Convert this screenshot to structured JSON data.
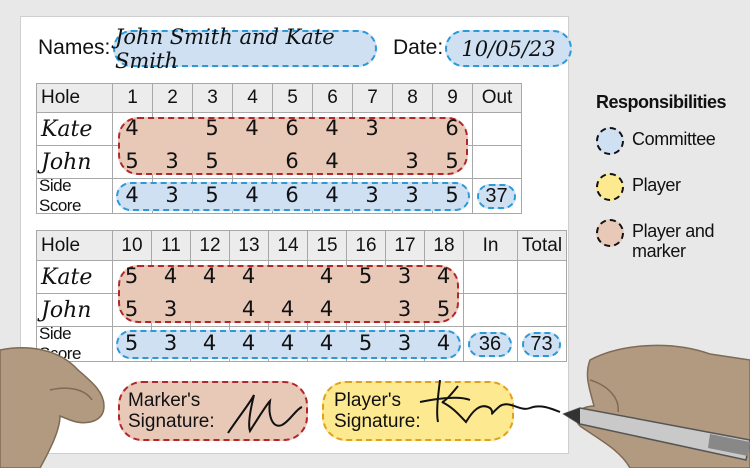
{
  "header": {
    "names_label": "Names:",
    "names_value": "John Smith and Kate Smith",
    "date_label": "Date:",
    "date_value": "10/05/23"
  },
  "front_nine": {
    "hole_label": "Hole",
    "holes": [
      "1",
      "2",
      "3",
      "4",
      "5",
      "6",
      "7",
      "8",
      "9"
    ],
    "total_label": "Out",
    "rows": [
      {
        "name": "Kate",
        "scores": [
          "4",
          "",
          "5",
          "4",
          "6",
          "4",
          "3",
          "",
          "6"
        ]
      },
      {
        "name": "John",
        "scores": [
          "5",
          "3",
          "5",
          "",
          "6",
          "4",
          "",
          "3",
          "5"
        ]
      }
    ],
    "side_label": "Side Score",
    "side_scores": [
      "4",
      "3",
      "5",
      "4",
      "6",
      "4",
      "3",
      "3",
      "5"
    ],
    "out_total": "37"
  },
  "back_nine": {
    "hole_label": "Hole",
    "holes": [
      "10",
      "11",
      "12",
      "13",
      "14",
      "15",
      "16",
      "17",
      "18"
    ],
    "in_label": "In",
    "total_label": "Total",
    "rows": [
      {
        "name": "Kate",
        "scores": [
          "5",
          "4",
          "4",
          "4",
          "",
          "4",
          "5",
          "3",
          "4"
        ]
      },
      {
        "name": "John",
        "scores": [
          "5",
          "3",
          "",
          "4",
          "4",
          "4",
          "",
          "3",
          "5"
        ]
      }
    ],
    "side_label": "Side Score",
    "side_scores": [
      "5",
      "3",
      "4",
      "4",
      "4",
      "4",
      "5",
      "3",
      "4"
    ],
    "in_total": "36",
    "grand_total": "73"
  },
  "signatures": {
    "marker_label_1": "Marker's",
    "marker_label_2": "Signature:",
    "player_label_1": "Player's",
    "player_label_2": "Signature:"
  },
  "legend": {
    "title": "Responsibilities",
    "items": [
      {
        "label": "Committee",
        "color": "#cfe0f3",
        "border": "#2a9ad8"
      },
      {
        "label": "Player",
        "color": "#fde98f",
        "border": "#e0a21c"
      },
      {
        "label": "Player and marker",
        "color": "#e8c9b8",
        "border": "#b3262a"
      }
    ]
  }
}
